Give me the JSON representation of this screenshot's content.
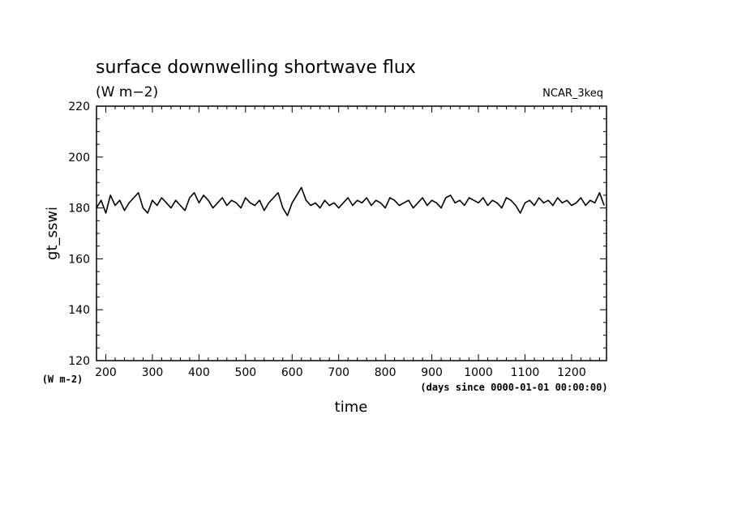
{
  "chart_data": {
    "type": "line",
    "title": "surface downwelling shortwave flux",
    "title_units": "(W m−2)",
    "run_label": "NCAR_3keq",
    "xlabel": "time",
    "x_units": "(days since 0000-01-01 00:00:00)",
    "ylabel": "gt_sswi",
    "y_units": "(W m-2)",
    "xlim": [
      180,
      1275
    ],
    "ylim": [
      120,
      220
    ],
    "x_ticks": [
      200,
      300,
      400,
      500,
      600,
      700,
      800,
      900,
      1000,
      1100,
      1200
    ],
    "y_ticks": [
      120,
      140,
      160,
      180,
      200,
      220
    ],
    "grid": false,
    "series": [
      {
        "x": [
          180,
          190,
          200,
          210,
          220,
          230,
          240,
          250,
          260,
          270,
          280,
          290,
          300,
          310,
          320,
          330,
          340,
          350,
          360,
          370,
          380,
          390,
          400,
          410,
          420,
          430,
          440,
          450,
          460,
          470,
          480,
          490,
          500,
          510,
          520,
          530,
          540,
          550,
          560,
          570,
          580,
          590,
          600,
          610,
          620,
          630,
          640,
          650,
          660,
          670,
          680,
          690,
          700,
          710,
          720,
          730,
          740,
          750,
          760,
          770,
          780,
          790,
          800,
          810,
          820,
          830,
          840,
          850,
          860,
          870,
          880,
          890,
          900,
          910,
          920,
          930,
          940,
          950,
          960,
          970,
          980,
          990,
          1000,
          1010,
          1020,
          1030,
          1040,
          1050,
          1060,
          1070,
          1080,
          1090,
          1100,
          1110,
          1120,
          1130,
          1140,
          1150,
          1160,
          1170,
          1180,
          1190,
          1200,
          1210,
          1220,
          1230,
          1240,
          1250,
          1260,
          1270
        ],
        "values": [
          180,
          183,
          178,
          185,
          181,
          183,
          179,
          182,
          184,
          186,
          180,
          178,
          183,
          181,
          184,
          182,
          180,
          183,
          181,
          179,
          184,
          186,
          182,
          185,
          183,
          180,
          182,
          184,
          181,
          183,
          182,
          180,
          184,
          182,
          181,
          183,
          179,
          182,
          184,
          186,
          180,
          177,
          182,
          185,
          188,
          183,
          181,
          182,
          180,
          183,
          181,
          182,
          180,
          182,
          184,
          181,
          183,
          182,
          184,
          181,
          183,
          182,
          180,
          184,
          183,
          181,
          182,
          183,
          180,
          182,
          184,
          181,
          183,
          182,
          180,
          184,
          185,
          182,
          183,
          181,
          184,
          183,
          182,
          184,
          181,
          183,
          182,
          180,
          184,
          183,
          181,
          178,
          182,
          183,
          181,
          184,
          182,
          183,
          181,
          184,
          182,
          183,
          181,
          182,
          184,
          181,
          183,
          182,
          186,
          181
        ]
      }
    ]
  }
}
